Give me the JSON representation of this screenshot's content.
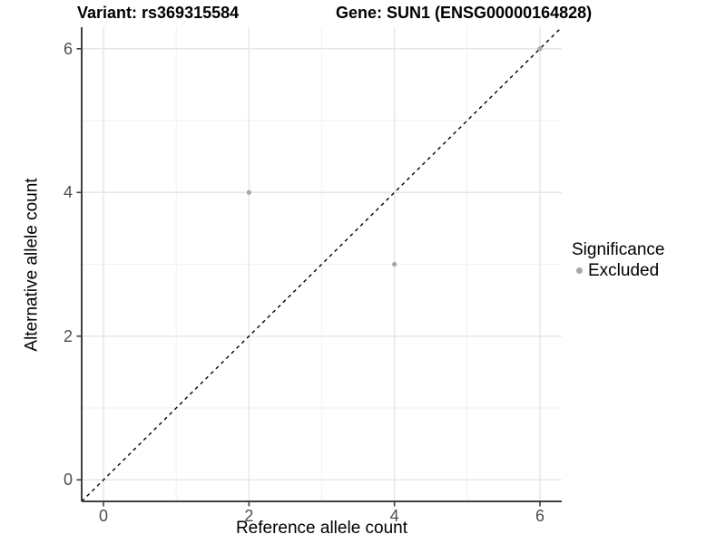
{
  "chart_data": {
    "type": "scatter",
    "titles": {
      "variant": "Variant: rs369315584",
      "gene": "Gene: SUN1 (ENSG00000164828)"
    },
    "xlabel": "Reference allele count",
    "ylabel": "Alternative allele count",
    "xlim": [
      -0.3,
      6.3
    ],
    "ylim": [
      -0.3,
      6.3
    ],
    "xticks": [
      0,
      2,
      4,
      6
    ],
    "yticks": [
      0,
      2,
      4,
      6
    ],
    "minor_xticks": [
      1,
      3,
      5
    ],
    "minor_yticks": [
      1,
      3,
      5
    ],
    "grid": true,
    "series": [
      {
        "name": "Excluded",
        "color": "#a8a8a8",
        "points": [
          {
            "x": 2,
            "y": 4
          },
          {
            "x": 4,
            "y": 3
          },
          {
            "x": 6,
            "y": 6
          }
        ]
      }
    ],
    "reference_line": {
      "kind": "identity y=x",
      "style": "dashed",
      "color": "#000000"
    },
    "legend": {
      "title": "Significance",
      "position": "right",
      "entries": [
        {
          "label": "Excluded",
          "color": "#a8a8a8"
        }
      ]
    },
    "colors": {
      "axis_line": "#404040",
      "tick_label": "#4d4d4d",
      "grid_major": "#e6e6e6",
      "grid_minor": "#f2f2f2",
      "background": "#ffffff"
    }
  }
}
